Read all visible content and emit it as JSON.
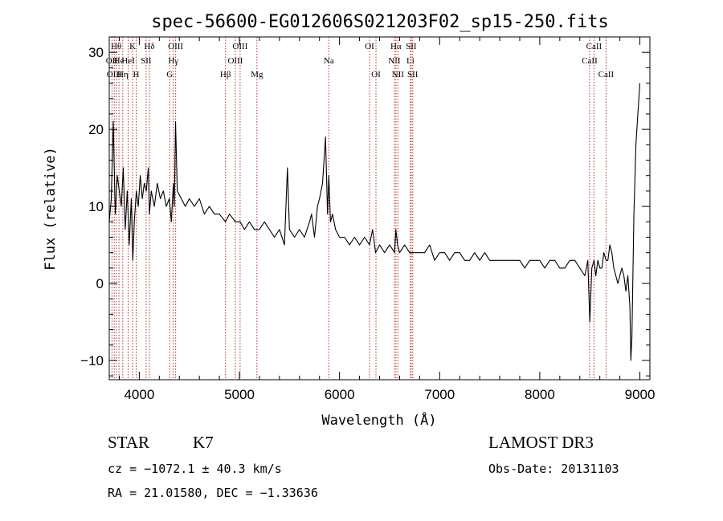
{
  "chart_data": {
    "type": "line",
    "title": "spec-56600-EG012606S021203F02_sp15-250.fits",
    "xlabel": "Wavelength (Å)",
    "ylabel": "Flux (relative)",
    "xlim": [
      3700,
      9100
    ],
    "ylim": [
      -12.5,
      32
    ],
    "xticks": [
      4000,
      5000,
      6000,
      7000,
      8000,
      9000
    ],
    "yticks": [
      -10,
      0,
      10,
      20,
      30
    ],
    "grid": false,
    "line_color": "#000000",
    "marker_color": "#b03030",
    "series": [
      {
        "x": [
          3700,
          3720,
          3740,
          3760,
          3780,
          3800,
          3820,
          3840,
          3860,
          3880,
          3900,
          3920,
          3935,
          3950,
          3970,
          3990,
          4010,
          4030,
          4050,
          4070,
          4090,
          4101,
          4120,
          4150,
          4180,
          4210,
          4240,
          4270,
          4300,
          4320,
          4340,
          4350,
          4362,
          4380,
          4420,
          4460,
          4500,
          4550,
          4600,
          4650,
          4700,
          4750,
          4800,
          4861,
          4900,
          4960,
          5007,
          5050,
          5100,
          5150,
          5200,
          5250,
          5300,
          5350,
          5400,
          5450,
          5480,
          5500,
          5550,
          5600,
          5650,
          5700,
          5720,
          5750,
          5780,
          5800,
          5830,
          5860,
          5880,
          5893,
          5910,
          5930,
          5960,
          6000,
          6050,
          6100,
          6150,
          6200,
          6250,
          6300,
          6330,
          6360,
          6400,
          6450,
          6500,
          6550,
          6563,
          6580,
          6600,
          6650,
          6700,
          6750,
          6800,
          6850,
          6900,
          6950,
          7000,
          7050,
          7100,
          7150,
          7200,
          7250,
          7300,
          7350,
          7400,
          7450,
          7500,
          7550,
          7600,
          7650,
          7700,
          7750,
          7800,
          7850,
          7900,
          7950,
          8000,
          8050,
          8100,
          8150,
          8200,
          8250,
          8300,
          8350,
          8400,
          8450,
          8480,
          8500,
          8520,
          8542,
          8560,
          8580,
          8600,
          8620,
          8640,
          8662,
          8680,
          8700,
          8720,
          8740,
          8760,
          8780,
          8800,
          8820,
          8840,
          8860,
          8880,
          8900,
          8910,
          8920,
          8940,
          8960,
          8980,
          9000
        ],
        "y": [
          8,
          11,
          21,
          9,
          14,
          12,
          10,
          15,
          7,
          12,
          5,
          11,
          3,
          8,
          12,
          10,
          14,
          11,
          13,
          12,
          15,
          9,
          12,
          10,
          13,
          11,
          12,
          10,
          11,
          8,
          13,
          10,
          21,
          12,
          11,
          10,
          11,
          10,
          11,
          9,
          10,
          9,
          9,
          8,
          9,
          8,
          8,
          7,
          8,
          7,
          7,
          8,
          7,
          6,
          7,
          5,
          15,
          7,
          6,
          7,
          6,
          8,
          9,
          6,
          10,
          11,
          13,
          19,
          9,
          14,
          8,
          9,
          7,
          6,
          6,
          5,
          6,
          5,
          6,
          5,
          7,
          4,
          5,
          4,
          5,
          4,
          7,
          5,
          4,
          5,
          4,
          4,
          4,
          4,
          5,
          3,
          4,
          4,
          3,
          4,
          4,
          3,
          3,
          4,
          3,
          4,
          3,
          3,
          3,
          3,
          3,
          3,
          3,
          2,
          3,
          3,
          3,
          2,
          3,
          3,
          2,
          2,
          3,
          3,
          2,
          1,
          3,
          -5,
          2,
          3,
          1,
          3,
          2,
          2,
          4,
          3,
          3,
          5,
          4,
          2,
          1,
          0,
          1,
          2,
          1,
          -1,
          1,
          -3,
          -10,
          -7,
          9,
          18,
          22,
          26
        ]
      }
    ],
    "line_markers": [
      {
        "x": 3727,
        "label": "OII",
        "row": 1
      },
      {
        "x": 3750,
        "label": "OIII",
        "row": 2
      },
      {
        "x": 3770,
        "label": "Hθ",
        "row": 0
      },
      {
        "x": 3797,
        "label": "He",
        "row": 1
      },
      {
        "x": 3835,
        "label": "Hη",
        "row": 2
      },
      {
        "x": 3889,
        "label": "HeI",
        "row": 1
      },
      {
        "x": 3934,
        "label": "K",
        "row": 0
      },
      {
        "x": 3969,
        "label": "H",
        "row": 2
      },
      {
        "x": 4068,
        "label": "SII",
        "row": 1
      },
      {
        "x": 4101,
        "label": "Hδ",
        "row": 0
      },
      {
        "x": 4304,
        "label": "G",
        "row": 2
      },
      {
        "x": 4340,
        "label": "Hγ",
        "row": 1
      },
      {
        "x": 4363,
        "label": "OIII",
        "row": 0
      },
      {
        "x": 4861,
        "label": "Hβ",
        "row": 2
      },
      {
        "x": 4959,
        "label": "OIII",
        "row": 1
      },
      {
        "x": 5007,
        "label": "OIII",
        "row": 0
      },
      {
        "x": 5175,
        "label": "Mg",
        "row": 2
      },
      {
        "x": 5893,
        "label": "Na",
        "row": 1
      },
      {
        "x": 6300,
        "label": "OI",
        "row": 0
      },
      {
        "x": 6364,
        "label": "OI",
        "row": 2
      },
      {
        "x": 6548,
        "label": "NII",
        "row": 1
      },
      {
        "x": 6563,
        "label": "Hα",
        "row": 0
      },
      {
        "x": 6583,
        "label": "NII",
        "row": 2
      },
      {
        "x": 6708,
        "label": "Li",
        "row": 1
      },
      {
        "x": 6716,
        "label": "SII",
        "row": 0
      },
      {
        "x": 6731,
        "label": "SII",
        "row": 2
      },
      {
        "x": 8498,
        "label": "CaII",
        "row": 1
      },
      {
        "x": 8542,
        "label": "CaII",
        "row": 0
      },
      {
        "x": 8662,
        "label": "CaII",
        "row": 2
      }
    ]
  },
  "info": {
    "object_class": "STAR",
    "subclass": "K7",
    "survey": "LAMOST DR3",
    "redshift_text": "cz = −1072.1 ± 40.3 km/s",
    "obs_date_text": "Obs-Date: 20131103",
    "coords_text": "RA =  21.01580, DEC =  −1.33636"
  }
}
